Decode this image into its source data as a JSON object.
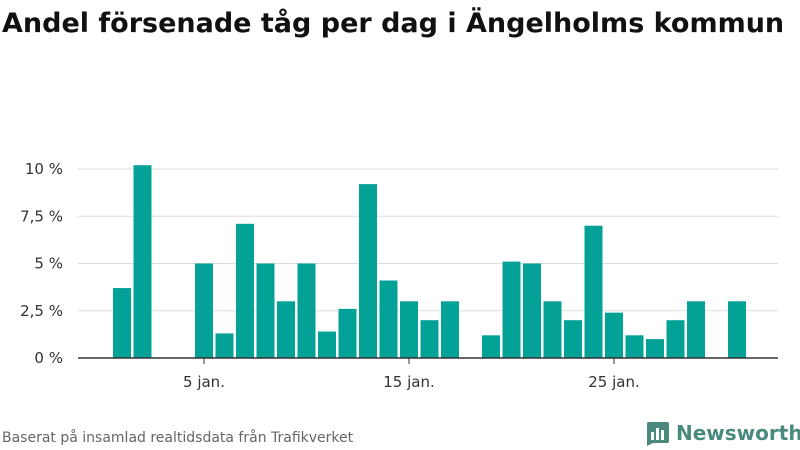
{
  "title": "Andel försenade tåg per dag i Ängelholms kommun",
  "footer": {
    "note": "Baserat på insamlad realtidsdata från Trafikverket",
    "brand": "Newsworthy"
  },
  "colors": {
    "bar": "#04a196",
    "grid": "#dddddd",
    "brand": "#4a8a7e"
  },
  "chart_data": {
    "type": "bar",
    "title": "Andel försenade tåg per dag i Ängelholms kommun",
    "xlabel": "",
    "ylabel": "",
    "unit": "%",
    "ylim": [
      0,
      10.5
    ],
    "y_ticks": [
      0,
      2.5,
      5,
      7.5,
      10
    ],
    "y_tick_labels": [
      "0 %",
      "2,5 %",
      "5 %",
      "7,5 %",
      "10 %"
    ],
    "x_tick_days": [
      5,
      15,
      25
    ],
    "x_tick_labels": [
      "5 jan.",
      "15 jan.",
      "25 jan."
    ],
    "grid": true,
    "days": [
      1,
      2,
      3,
      4,
      5,
      6,
      7,
      8,
      9,
      10,
      11,
      12,
      13,
      14,
      15,
      16,
      17,
      18,
      19,
      20,
      21,
      22,
      23,
      24,
      25,
      26,
      27,
      28,
      29,
      30,
      31,
      32,
      33,
      34
    ],
    "values": [
      3.7,
      10.2,
      null,
      null,
      5.0,
      1.3,
      7.1,
      5.0,
      3.0,
      5.0,
      1.4,
      2.6,
      9.2,
      4.1,
      3.0,
      2.0,
      3.0,
      null,
      1.2,
      5.1,
      5.0,
      3.0,
      2.0,
      7.0,
      2.4,
      1.2,
      1.0,
      2.0,
      3.0,
      null,
      3.0,
      null,
      null,
      null
    ],
    "grid_color": "#dddddd"
  }
}
